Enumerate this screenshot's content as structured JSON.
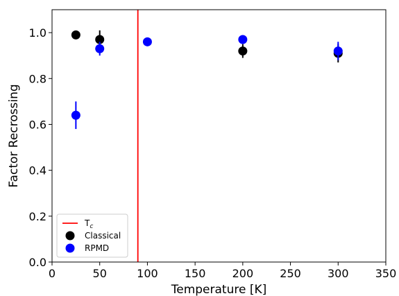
{
  "chart_data": {
    "type": "scatter",
    "xlabel": "Temperature [K]",
    "ylabel": "Factor Recrossing",
    "xlim": [
      0,
      350
    ],
    "ylim": [
      0,
      1.1
    ],
    "xticks": [
      0,
      50,
      100,
      150,
      200,
      250,
      300,
      350
    ],
    "yticks": [
      0.0,
      0.2,
      0.4,
      0.6,
      0.8,
      1.0
    ],
    "xtick_labels": [
      "0",
      "50",
      "100",
      "150",
      "200",
      "250",
      "300",
      "350"
    ],
    "ytick_labels": [
      "0.0",
      "0.2",
      "0.4",
      "0.6",
      "0.8",
      "1.0"
    ],
    "grid": false,
    "legend_position": "lower-left",
    "vline": {
      "name": "T",
      "sub": "c",
      "x": 90,
      "color": "#ff0000"
    },
    "series": [
      {
        "name": "Classical",
        "color": "#000000",
        "points": [
          {
            "x": 25,
            "y": 0.99,
            "err": 0
          },
          {
            "x": 50,
            "y": 0.97,
            "err": 0.04
          },
          {
            "x": 200,
            "y": 0.92,
            "err": 0.03
          },
          {
            "x": 300,
            "y": 0.91,
            "err": 0.04
          }
        ]
      },
      {
        "name": "RPMD",
        "color": "#0000ff",
        "points": [
          {
            "x": 25,
            "y": 0.64,
            "err": 0.06
          },
          {
            "x": 50,
            "y": 0.93,
            "err": 0.03
          },
          {
            "x": 100,
            "y": 0.96,
            "err": 0
          },
          {
            "x": 200,
            "y": 0.97,
            "err": 0
          },
          {
            "x": 300,
            "y": 0.92,
            "err": 0.04
          }
        ]
      }
    ]
  }
}
